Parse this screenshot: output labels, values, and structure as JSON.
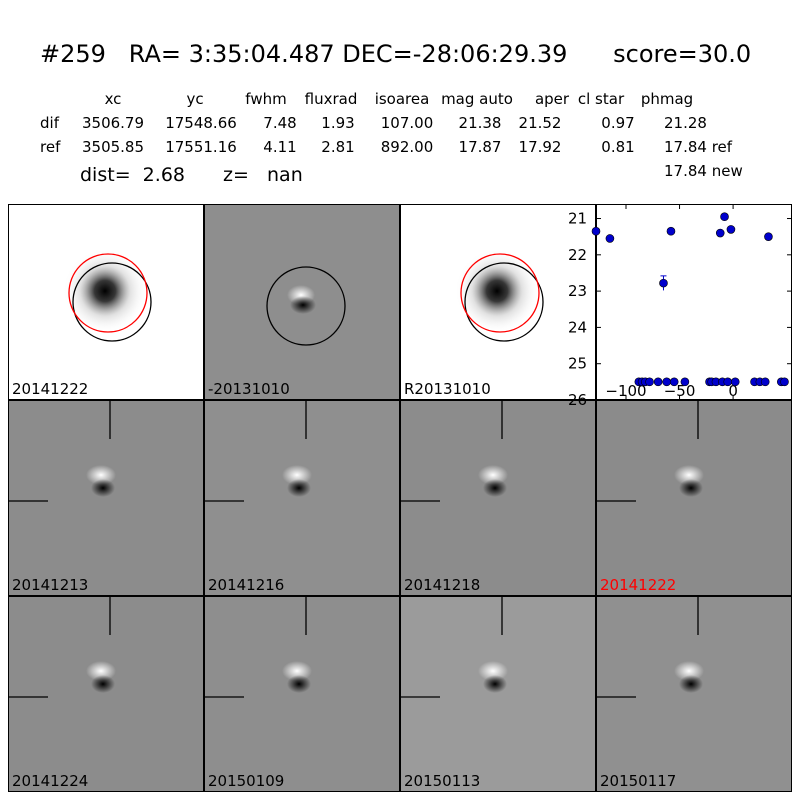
{
  "header": {
    "title": "#259   RA= 3:35:04.487 DEC=-28:06:29.39      score=30.0"
  },
  "table": {
    "columns": [
      "xc",
      "yc",
      "fwhm",
      "fluxrad",
      "isoarea",
      "mag auto",
      "aper",
      "cl star",
      "phmag"
    ],
    "rows": [
      {
        "label": "dif",
        "values": [
          "3506.79",
          "17548.66",
          "7.48",
          "1.93",
          "107.00",
          "21.38",
          "21.52",
          "0.97",
          "21.28"
        ]
      },
      {
        "label": "ref",
        "values": [
          "3505.85",
          "17551.16",
          "4.11",
          "2.81",
          "892.00",
          "17.87",
          "17.92",
          "0.81",
          "17.84 ref"
        ]
      }
    ],
    "extra": "17.84 new"
  },
  "summary": {
    "dist": "dist=  2.68",
    "z": "z=   nan"
  },
  "top_panels": [
    {
      "label": "20141222",
      "bg": "#ffffff"
    },
    {
      "label": "-20131010",
      "bg": "#8e8e8e"
    },
    {
      "label": "R20131010",
      "bg": "#ffffff"
    }
  ],
  "cutouts": [
    {
      "label": "20141213",
      "bg": "#8c8c8c",
      "highlight": false
    },
    {
      "label": "20141216",
      "bg": "#8f8f8f",
      "highlight": false
    },
    {
      "label": "20141218",
      "bg": "#8c8c8c",
      "highlight": false
    },
    {
      "label": "20141222",
      "bg": "#8b8b8b",
      "highlight": true
    },
    {
      "label": "20141224",
      "bg": "#8c8c8c",
      "highlight": false
    },
    {
      "label": "20150109",
      "bg": "#8e8e8e",
      "highlight": false
    },
    {
      "label": "20150113",
      "bg": "#9b9b9b",
      "highlight": false
    },
    {
      "label": "20150117",
      "bg": "#909090",
      "highlight": false
    }
  ],
  "colors": {
    "highlight": "#ff0000",
    "circle_red": "#ff0000",
    "point": "#0000cc"
  },
  "chart_data": {
    "type": "scatter",
    "title": "",
    "xlabel": "",
    "ylabel": "",
    "xlim": [
      -128,
      55
    ],
    "ylim": [
      26,
      20.6
    ],
    "xticks": [
      -100,
      -50,
      0
    ],
    "yticks": [
      21,
      22,
      23,
      24,
      25,
      26
    ],
    "xtick_labels": [
      "−100",
      "−50",
      "0"
    ],
    "ytick_labels": [
      "21",
      "22",
      "23",
      "24",
      "25",
      "26"
    ],
    "series": [
      {
        "points": [
          {
            "x": -128,
            "y": 21.35
          },
          {
            "x": -115,
            "y": 21.55
          },
          {
            "x": -58,
            "y": 21.35
          },
          {
            "x": -65,
            "y": 22.78,
            "err": 0.2
          },
          {
            "x": -8,
            "y": 20.95
          },
          {
            "x": -12,
            "y": 21.4
          },
          {
            "x": -2,
            "y": 21.3
          },
          {
            "x": 33,
            "y": 21.5
          },
          {
            "x": -88,
            "y": 25.5
          },
          {
            "x": -85,
            "y": 25.5
          },
          {
            "x": -82,
            "y": 25.5
          },
          {
            "x": -78,
            "y": 25.5
          },
          {
            "x": -70,
            "y": 25.5
          },
          {
            "x": -62,
            "y": 25.5
          },
          {
            "x": -55,
            "y": 25.5
          },
          {
            "x": -45,
            "y": 25.5
          },
          {
            "x": -22,
            "y": 25.5
          },
          {
            "x": -20,
            "y": 25.5
          },
          {
            "x": -16,
            "y": 25.5
          },
          {
            "x": -10,
            "y": 25.5
          },
          {
            "x": -5,
            "y": 25.5
          },
          {
            "x": 2,
            "y": 25.5
          },
          {
            "x": 20,
            "y": 25.5
          },
          {
            "x": 25,
            "y": 25.5
          },
          {
            "x": 30,
            "y": 25.5
          },
          {
            "x": 45,
            "y": 25.5
          },
          {
            "x": 48,
            "y": 25.5
          }
        ]
      }
    ]
  }
}
